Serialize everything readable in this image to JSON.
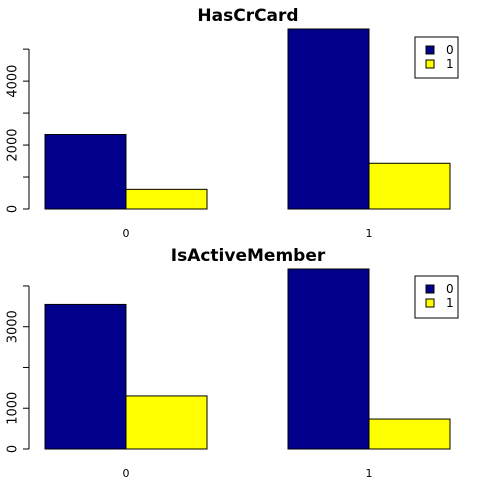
{
  "chart_data": [
    {
      "type": "bar",
      "title": "HasCrCard",
      "categories": [
        "0",
        "1"
      ],
      "series": [
        {
          "name": "0",
          "values": [
            2330,
            5630
          ]
        },
        {
          "name": "1",
          "values": [
            615,
            1430
          ]
        }
      ],
      "yticks": [
        0,
        2000,
        4000
      ],
      "ylim": [
        0,
        5630
      ],
      "colors": [
        "#00008B",
        "#FFFF00"
      ],
      "legend": "top-right"
    },
    {
      "type": "bar",
      "title": "IsActiveMember",
      "categories": [
        "0",
        "1"
      ],
      "series": [
        {
          "name": "0",
          "values": [
            3547,
            4416
          ]
        },
        {
          "name": "1",
          "values": [
            1302,
            735
          ]
        }
      ],
      "yticks": [
        0,
        1000,
        3000
      ],
      "ylim": [
        0,
        4416
      ],
      "colors": [
        "#00008B",
        "#FFFF00"
      ],
      "legend": "top-right"
    }
  ]
}
